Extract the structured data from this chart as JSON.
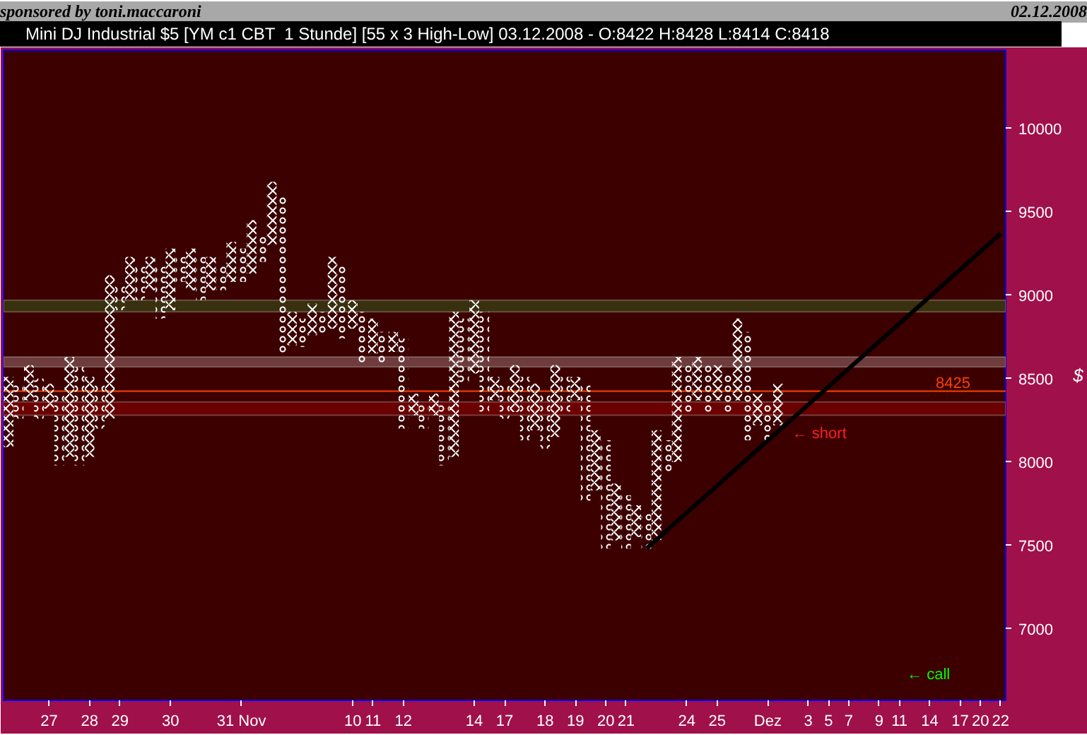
{
  "chart_data": {
    "type": "bar",
    "title": "Mini DJ Industrial $5 [YM c1 CBT  1 Stunde] [55 x 3 High-Low] 03.12.2008 - O:8422 H:8428 L:8414 C:8418",
    "ylabel": "$",
    "annotations": [
      "sponsored by toni.maccaroni",
      "02.12.2008",
      "← short",
      "← call"
    ],
    "categories": [
      null,
      null,
      null,
      null,
      "27",
      null,
      null,
      null,
      "28",
      null,
      null,
      "29",
      null,
      null,
      null,
      null,
      "30",
      null,
      null,
      null,
      null,
      null,
      null,
      "31 Nov",
      null,
      null,
      null,
      null,
      null,
      null,
      null,
      null,
      null,
      null,
      "10",
      null,
      "11",
      null,
      null,
      "12",
      null,
      null,
      null,
      null,
      null,
      null,
      "14",
      null,
      null,
      "17",
      null,
      null,
      null,
      "18",
      null,
      null,
      "19",
      null,
      null,
      "20",
      null,
      "21",
      null,
      null,
      null,
      null,
      null,
      "24",
      null,
      null,
      "25",
      null,
      null,
      null,
      null,
      "Dez",
      null,
      null,
      null,
      "3",
      null,
      "5",
      null,
      "7",
      null,
      null,
      "9",
      null,
      "11",
      null,
      null,
      "14",
      null,
      null,
      "17",
      null,
      "20",
      null,
      "22"
    ],
    "ylim": [
      6570,
      10470
    ],
    "yticks": [
      7000,
      7500,
      8000,
      8500,
      9000,
      9500,
      10000
    ],
    "grid": false,
    "ref_lines": [
      {
        "axis": "y",
        "value": 8425,
        "label": "8425",
        "color": "#ff4000"
      }
    ],
    "bands": [
      {
        "axis": "y",
        "from": 8570,
        "to": 8630,
        "color": "#6e3c3c"
      },
      {
        "axis": "y",
        "from": 8900,
        "to": 8970,
        "color": "#38300e"
      },
      {
        "axis": "y",
        "from": 8280,
        "to": 8360,
        "color": "#6a0000"
      }
    ],
    "series": [
      {
        "color": "#ffffff",
        "marker": "cross",
        "base": [
          8090,
          null,
          8370,
          null,
          8320,
          null,
          8030,
          null,
          8030,
          null,
          8260,
          null,
          8970,
          null,
          9030,
          null,
          8910,
          null,
          9030,
          null,
          9030,
          null,
          9080,
          null,
          9130,
          null,
          9300,
          null,
          8700,
          null,
          8760,
          null,
          8800,
          null,
          8800,
          null,
          8650,
          null,
          8660,
          null,
          8280,
          null,
          8280,
          null,
          8030,
          null,
          8530,
          null,
          8370,
          null,
          8300,
          null,
          8190,
          null,
          8150,
          null,
          8370,
          null,
          7830,
          null,
          7530,
          null,
          7550,
          null,
          7530,
          null,
          8000,
          null,
          8370,
          null,
          8370,
          null,
          8370,
          null,
          8220,
          null,
          8220,
          null,
          null,
          null,
          null,
          null,
          null,
          null,
          null,
          null,
          null,
          null,
          null,
          null,
          null,
          null,
          null,
          null,
          null,
          null,
          null,
          null,
          null
        ],
        "values": [
          420,
          null,
          210,
          null,
          150,
          null,
          600,
          null,
          480,
          null,
          860,
          null,
          260,
          null,
          200,
          null,
          370,
          null,
          250,
          null,
          200,
          null,
          240,
          null,
          320,
          null,
          380,
          null,
          200,
          null,
          190,
          null,
          430,
          null,
          170,
          null,
          210,
          null,
          120,
          null,
          130,
          null,
          130,
          null,
          870,
          null,
          440,
          null,
          140,
          null,
          280,
          null,
          280,
          null,
          430,
          null,
          140,
          null,
          360,
          null,
          340,
          null,
          190,
          null,
          660,
          null,
          630,
          null,
          260,
          null,
          210,
          null,
          490,
          null,
          190,
          null,
          250,
          null,
          null,
          null,
          null,
          null,
          null,
          null,
          null,
          null,
          null,
          null,
          null,
          null,
          null,
          null,
          null,
          null,
          null,
          null,
          null,
          null,
          null
        ]
      },
      {
        "color": "#ffffff",
        "marker": "circle",
        "base": [
          null,
          8260,
          null,
          8260,
          null,
          7980,
          null,
          7980,
          null,
          8200,
          null,
          8910,
          null,
          8970,
          null,
          8860,
          null,
          9080,
          null,
          8970,
          null,
          9030,
          null,
          9080,
          null,
          9200,
          null,
          8650,
          null,
          8690,
          null,
          8760,
          null,
          8740,
          null,
          8580,
          null,
          8580,
          null,
          8200,
          null,
          8200,
          null,
          7980,
          null,
          8470,
          null,
          8300,
          null,
          8260,
          null,
          8130,
          null,
          8080,
          null,
          8300,
          null,
          7760,
          null,
          7480,
          null,
          7480,
          null,
          7480,
          null,
          7930,
          null,
          8300,
          null,
          8300,
          null,
          8300,
          null,
          8130,
          null,
          8130,
          null,
          null,
          null,
          null,
          null,
          null,
          null,
          null,
          null,
          null,
          null,
          null,
          null,
          null,
          null,
          null,
          null,
          null,
          null,
          null,
          null,
          null,
          null
        ],
        "values": [
          null,
          210,
          null,
          240,
          null,
          420,
          null,
          590,
          null,
          260,
          null,
          150,
          null,
          210,
          null,
          320,
          null,
          150,
          null,
          260,
          null,
          150,
          null,
          200,
          null,
          150,
          null,
          950,
          null,
          170,
          null,
          140,
          null,
          440,
          null,
          320,
          null,
          200,
          null,
          540,
          null,
          160,
          null,
          380,
          null,
          390,
          null,
          600,
          null,
          210,
          null,
          380,
          null,
          330,
          null,
          210,
          null,
          710,
          null,
          650,
          null,
          320,
          null,
          220,
          null,
          200,
          null,
          280,
          null,
          280,
          null,
          230,
          null,
          650,
          null,
          230,
          null,
          null,
          null,
          null,
          null,
          null,
          null,
          null,
          null,
          null,
          null,
          null,
          null,
          null,
          null,
          null,
          null,
          null,
          null,
          null,
          null,
          null,
          null
        ]
      },
      {
        "type": "line",
        "color": "#000000",
        "values": [
          null,
          null,
          null,
          null,
          null,
          null,
          null,
          null,
          null,
          null,
          null,
          null,
          null,
          null,
          null,
          null,
          null,
          null,
          null,
          null,
          null,
          null,
          null,
          null,
          null,
          null,
          null,
          null,
          null,
          null,
          null,
          null,
          null,
          null,
          null,
          null,
          null,
          null,
          null,
          null,
          null,
          null,
          null,
          null,
          null,
          null,
          null,
          null,
          null,
          null,
          null,
          null,
          null,
          null,
          null,
          null,
          null,
          null,
          null,
          null,
          null,
          null,
          null,
          7480,
          null,
          null,
          null,
          null,
          null,
          null,
          null,
          null,
          null,
          null,
          null,
          null,
          null,
          null,
          null,
          null,
          null,
          null,
          null,
          null,
          null,
          null,
          null,
          null,
          null,
          null,
          null,
          null,
          null,
          null,
          null,
          null,
          null,
          null,
          9370
        ]
      }
    ]
  }
}
